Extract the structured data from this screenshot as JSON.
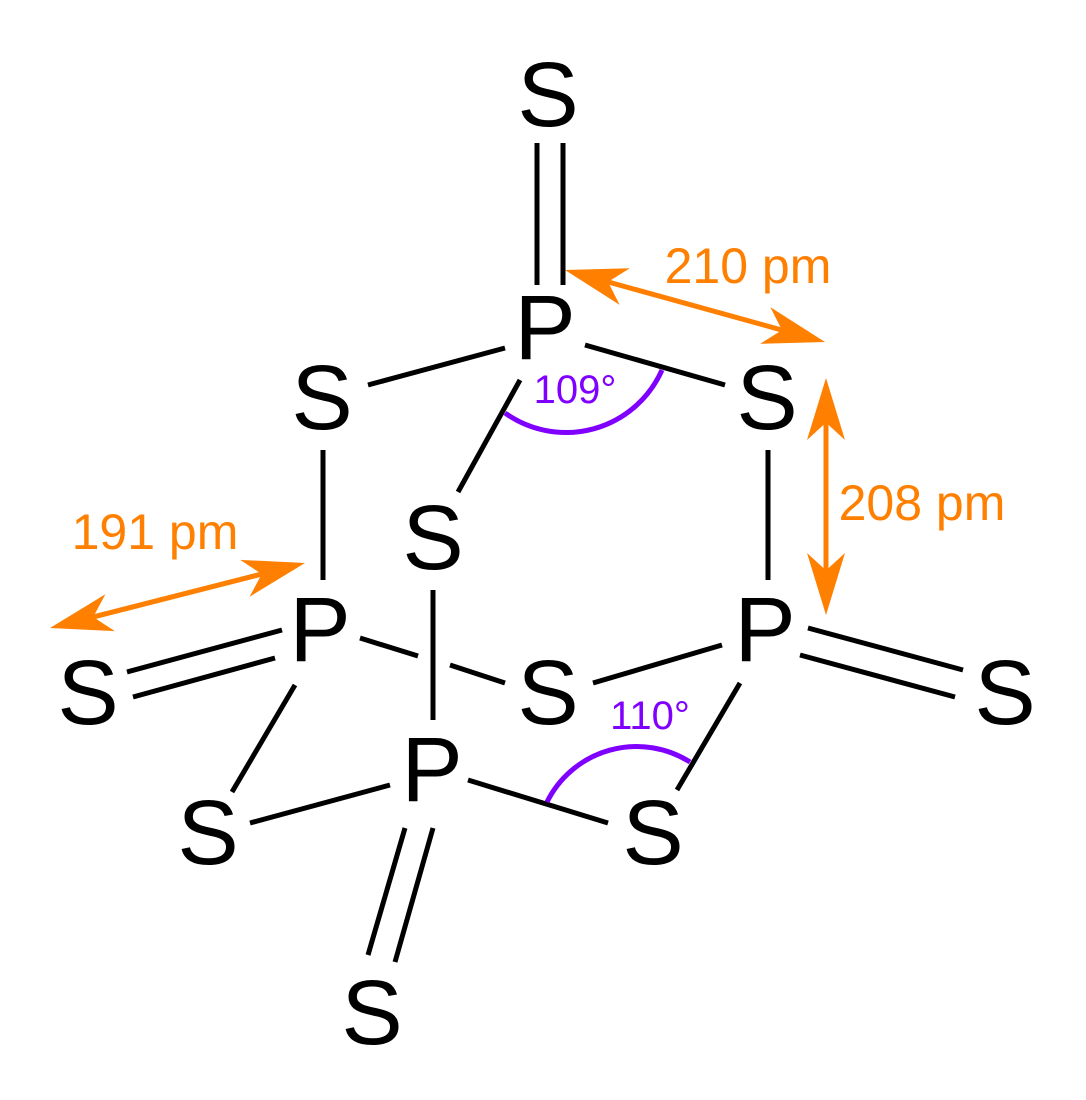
{
  "atoms": [
    {
      "label": "S"
    },
    {
      "label": "P"
    },
    {
      "label": "S"
    },
    {
      "label": "S"
    },
    {
      "label": "S"
    },
    {
      "label": "P"
    },
    {
      "label": "P"
    },
    {
      "label": "S"
    },
    {
      "label": "S"
    },
    {
      "label": "S"
    },
    {
      "label": "P"
    },
    {
      "label": "S"
    },
    {
      "label": "S"
    },
    {
      "label": "S"
    }
  ],
  "annotations": {
    "bond_lengths": [
      "210 pm",
      "208 pm",
      "191 pm"
    ],
    "angles": [
      "109°",
      "110°"
    ]
  }
}
